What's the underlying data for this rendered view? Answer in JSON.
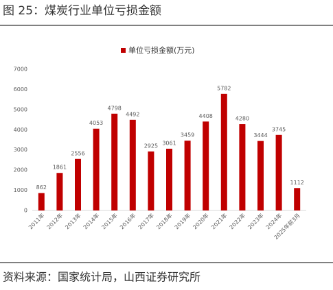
{
  "figure_caption": "图 25：煤炭行业单位亏损金额",
  "source": "资料来源：国家统计局，山西证券研究所",
  "chart_data": {
    "type": "bar",
    "categories": [
      "2011年",
      "2012年",
      "2013年",
      "2014年",
      "2015年",
      "2016年",
      "2017年",
      "2018年",
      "2019年",
      "2020年",
      "2021年",
      "2022年",
      "2023年",
      "2024年",
      "2025年前3月"
    ],
    "series": [
      {
        "name": "单位亏损金额(万元)",
        "color": "#c00000",
        "values": [
          862,
          1861,
          2556,
          4053,
          4798,
          4492,
          2925,
          3061,
          3459,
          4408,
          5782,
          4280,
          3444,
          3745,
          1112
        ]
      }
    ],
    "ylim": [
      0,
      7000
    ],
    "yticks": [
      0,
      1000,
      2000,
      3000,
      4000,
      5000,
      6000,
      7000
    ],
    "legend": "top"
  }
}
